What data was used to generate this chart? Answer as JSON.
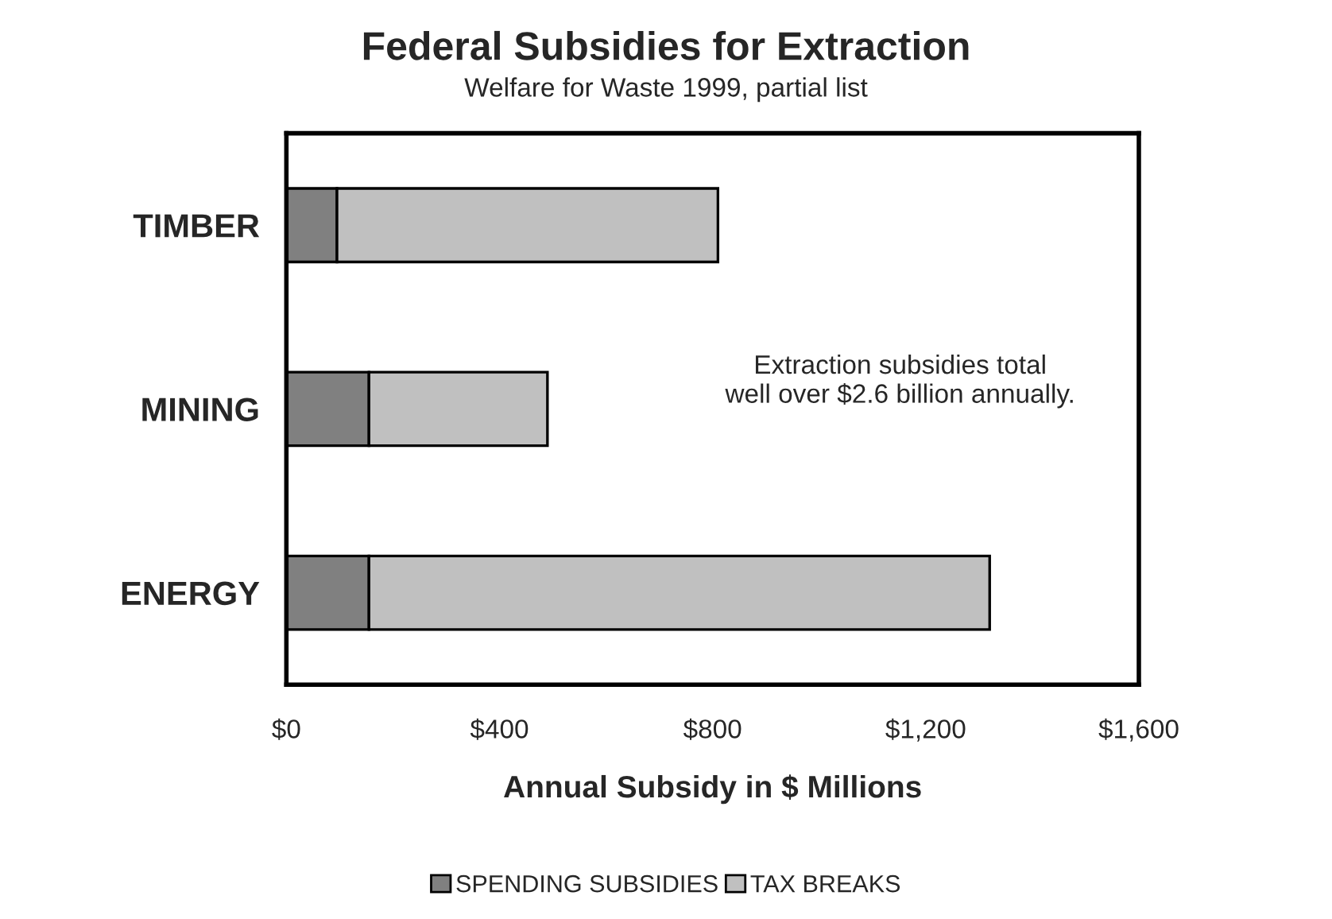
{
  "chart_data": {
    "type": "bar",
    "orientation": "horizontal",
    "stacked": true,
    "title": "Federal Subsidies for Extraction",
    "subtitle": "Welfare for Waste 1999, partial list",
    "xlabel": "Annual Subsidy in $ Millions",
    "categories": [
      "TIMBER",
      "MINING",
      "ENERGY"
    ],
    "series": [
      {
        "name": "SPENDING SUBSIDIES",
        "color": "#808080",
        "values": [
          95,
          155,
          155
        ]
      },
      {
        "name": "TAX BREAKS",
        "color": "#c0c0c0",
        "values": [
          715,
          335,
          1165
        ]
      }
    ],
    "xlim": [
      0,
      1600
    ],
    "xticks": [
      {
        "value": 0,
        "label": "$0"
      },
      {
        "value": 400,
        "label": "$400"
      },
      {
        "value": 800,
        "label": "$800"
      },
      {
        "value": 1200,
        "label": "$1,200"
      },
      {
        "value": 1600,
        "label": "$1,600"
      }
    ],
    "annotations": [
      "Extraction subsidies total\nwell over $2.6 billion annually."
    ],
    "legend": "bottom",
    "grid": false
  }
}
